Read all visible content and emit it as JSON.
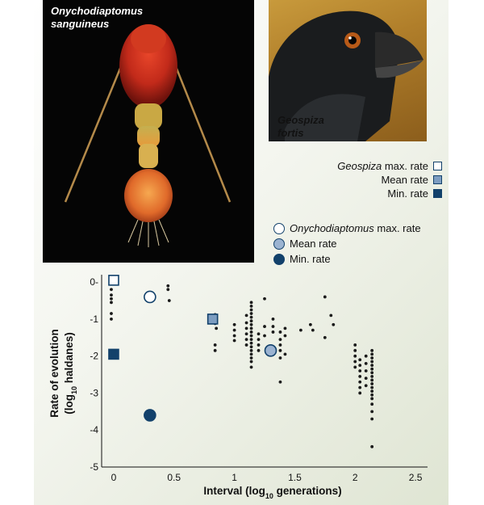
{
  "photos": {
    "copepod": {
      "caption_line1": "Onychodiaptomus",
      "caption_line2": "sanguineus"
    },
    "finch": {
      "caption_line1": "Geospiza",
      "caption_line2": "fortis"
    }
  },
  "legend": {
    "geospiza": [
      {
        "italic": "Geospiza",
        "text": " max. rate",
        "marker": "square",
        "fill": "#ffffff"
      },
      {
        "italic": "",
        "text": "Mean rate",
        "marker": "square",
        "fill": "#7d9dc1"
      },
      {
        "italic": "",
        "text": "Min. rate",
        "marker": "square",
        "fill": "#12416b"
      }
    ],
    "onychodiaptomus": [
      {
        "italic": "Onychodiaptomus",
        "text": " max. rate",
        "marker": "circle",
        "fill": "#ffffff"
      },
      {
        "italic": "",
        "text": "Mean rate",
        "marker": "circle",
        "fill": "#9bb3d1"
      },
      {
        "italic": "",
        "text": "Min. rate",
        "marker": "circle",
        "fill": "#12416b"
      }
    ]
  },
  "chart_data": {
    "type": "scatter",
    "xlabel_main": "Interval (log",
    "xlabel_sub": "10",
    "xlabel_end": " generations)",
    "ylabel_line1": "Rate of evolution",
    "ylabel_line2_main": "(log",
    "ylabel_line2_sub": "10",
    "ylabel_line2_end": " haldanes)",
    "xlim": [
      -0.1,
      2.6
    ],
    "ylim": [
      -5,
      0.2
    ],
    "x_ticks": [
      0,
      0.5,
      1,
      1.5,
      2,
      2.5
    ],
    "x_tick_labels": [
      "0",
      "0.5",
      "1",
      "1.5",
      "2",
      "2.5"
    ],
    "y_ticks": [
      0,
      -1,
      -2,
      -3,
      -4,
      -5
    ],
    "y_tick_labels": [
      "0-",
      "-1",
      "-2",
      "-3",
      "-4",
      "-5"
    ],
    "colors": {
      "dark": "#12416b",
      "mean_square": "#7d9dc1",
      "mean_circle": "#9bb3d1",
      "dots": "#1a1a1a"
    },
    "highlights": [
      {
        "series": "Geospiza max. rate",
        "marker": "square",
        "fill": "#ffffff",
        "x": 0.0,
        "y": 0.05
      },
      {
        "series": "Geospiza mean rate",
        "marker": "square",
        "fill": "#7d9dc1",
        "x": 0.82,
        "y": -1.0
      },
      {
        "series": "Geospiza min. rate",
        "marker": "square",
        "fill": "#12416b",
        "x": 0.0,
        "y": -1.95
      },
      {
        "series": "Onychodiaptomus max. rate",
        "marker": "circle",
        "fill": "#ffffff",
        "x": 0.3,
        "y": -0.4
      },
      {
        "series": "Onychodiaptomus mean rate",
        "marker": "circle",
        "fill": "#9bb3d1",
        "x": 1.3,
        "y": -1.85
      },
      {
        "series": "Onychodiaptomus min. rate",
        "marker": "circle",
        "fill": "#12416b",
        "x": 0.3,
        "y": -3.6
      }
    ],
    "points": [
      [
        -0.02,
        -0.2
      ],
      [
        -0.02,
        -0.35
      ],
      [
        -0.02,
        -0.45
      ],
      [
        -0.02,
        -0.55
      ],
      [
        -0.02,
        -0.85
      ],
      [
        -0.02,
        -1.0
      ],
      [
        0.45,
        -0.1
      ],
      [
        0.45,
        -0.2
      ],
      [
        0.46,
        -0.5
      ],
      [
        0.84,
        -0.88
      ],
      [
        0.84,
        -1.12
      ],
      [
        0.85,
        -1.25
      ],
      [
        0.84,
        -1.7
      ],
      [
        0.84,
        -1.85
      ],
      [
        1.0,
        -1.15
      ],
      [
        1.0,
        -1.3
      ],
      [
        1.0,
        -1.45
      ],
      [
        1.0,
        -1.58
      ],
      [
        1.1,
        -0.9
      ],
      [
        1.1,
        -1.1
      ],
      [
        1.1,
        -1.25
      ],
      [
        1.1,
        -1.4
      ],
      [
        1.1,
        -1.55
      ],
      [
        1.1,
        -1.7
      ],
      [
        1.14,
        -0.55
      ],
      [
        1.14,
        -0.65
      ],
      [
        1.14,
        -0.75
      ],
      [
        1.14,
        -0.85
      ],
      [
        1.14,
        -0.95
      ],
      [
        1.14,
        -1.05
      ],
      [
        1.14,
        -1.15
      ],
      [
        1.14,
        -1.25
      ],
      [
        1.14,
        -1.35
      ],
      [
        1.14,
        -1.45
      ],
      [
        1.14,
        -1.55
      ],
      [
        1.14,
        -1.65
      ],
      [
        1.14,
        -1.75
      ],
      [
        1.14,
        -1.85
      ],
      [
        1.14,
        -1.95
      ],
      [
        1.14,
        -2.05
      ],
      [
        1.14,
        -2.15
      ],
      [
        1.14,
        -2.3
      ],
      [
        1.2,
        -1.4
      ],
      [
        1.2,
        -1.55
      ],
      [
        1.2,
        -1.7
      ],
      [
        1.2,
        -1.85
      ],
      [
        1.25,
        -0.45
      ],
      [
        1.25,
        -1.2
      ],
      [
        1.25,
        -1.45
      ],
      [
        1.32,
        -1.0
      ],
      [
        1.32,
        -1.2
      ],
      [
        1.32,
        -1.35
      ],
      [
        1.38,
        -1.35
      ],
      [
        1.38,
        -1.55
      ],
      [
        1.38,
        -1.7
      ],
      [
        1.38,
        -1.85
      ],
      [
        1.38,
        -2.05
      ],
      [
        1.38,
        -2.7
      ],
      [
        1.42,
        -1.25
      ],
      [
        1.42,
        -1.45
      ],
      [
        1.42,
        -1.95
      ],
      [
        1.55,
        -1.3
      ],
      [
        1.63,
        -1.15
      ],
      [
        1.65,
        -1.3
      ],
      [
        1.75,
        -0.4
      ],
      [
        1.75,
        -1.5
      ],
      [
        1.8,
        -0.9
      ],
      [
        1.82,
        -1.15
      ],
      [
        2.0,
        -1.7
      ],
      [
        2.0,
        -1.85
      ],
      [
        2.0,
        -2.0
      ],
      [
        2.0,
        -2.15
      ],
      [
        2.0,
        -2.3
      ],
      [
        2.04,
        -2.1
      ],
      [
        2.04,
        -2.25
      ],
      [
        2.04,
        -2.4
      ],
      [
        2.04,
        -2.55
      ],
      [
        2.04,
        -2.7
      ],
      [
        2.04,
        -2.85
      ],
      [
        2.04,
        -3.0
      ],
      [
        2.09,
        -2.0
      ],
      [
        2.09,
        -2.2
      ],
      [
        2.09,
        -2.4
      ],
      [
        2.09,
        -2.6
      ],
      [
        2.09,
        -2.8
      ],
      [
        2.14,
        -1.85
      ],
      [
        2.14,
        -1.95
      ],
      [
        2.14,
        -2.05
      ],
      [
        2.14,
        -2.15
      ],
      [
        2.14,
        -2.25
      ],
      [
        2.14,
        -2.35
      ],
      [
        2.14,
        -2.45
      ],
      [
        2.14,
        -2.55
      ],
      [
        2.14,
        -2.65
      ],
      [
        2.14,
        -2.75
      ],
      [
        2.14,
        -2.85
      ],
      [
        2.14,
        -2.95
      ],
      [
        2.14,
        -3.05
      ],
      [
        2.14,
        -3.15
      ],
      [
        2.14,
        -3.3
      ],
      [
        2.14,
        -3.5
      ],
      [
        2.14,
        -3.7
      ],
      [
        2.14,
        -4.45
      ]
    ]
  }
}
